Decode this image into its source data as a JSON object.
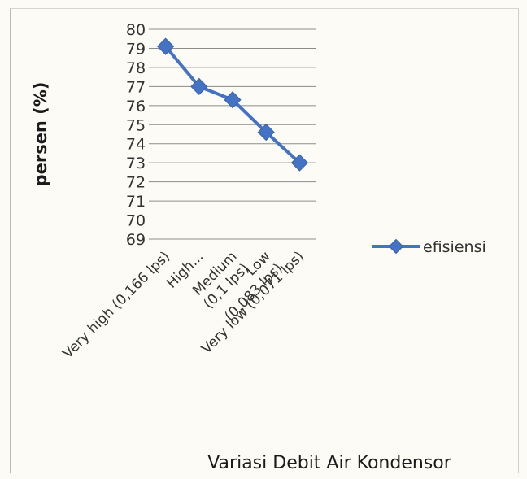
{
  "chart_data": {
    "type": "line",
    "title": "",
    "xlabel": "Variasi Debit Air Kondensor",
    "ylabel": "persen (%)",
    "categories": [
      "Very high (0,166 lps)",
      "High...",
      "Medium (0,1 lps)",
      "Low (0,083 lps)",
      "Very low (0,071 lps)"
    ],
    "category_display": [
      [
        "Very high (0,166 lps)"
      ],
      [
        "High..."
      ],
      [
        "Medium",
        "(0,1 lps)"
      ],
      [
        "Low",
        "(0,083 lps)"
      ],
      [
        "Very low (0,071 lps)"
      ]
    ],
    "series": [
      {
        "name": "efisiensi",
        "values": [
          79.1,
          77.0,
          76.3,
          74.6,
          73.0
        ]
      }
    ],
    "ylim": [
      69,
      80
    ],
    "yticks": [
      69,
      70,
      71,
      72,
      73,
      74,
      75,
      76,
      77,
      78,
      79,
      80
    ],
    "grid": true,
    "legend": "right",
    "colors": {
      "series": "#4472c4",
      "grid": "#8c8c8c",
      "text": "#333333"
    }
  }
}
